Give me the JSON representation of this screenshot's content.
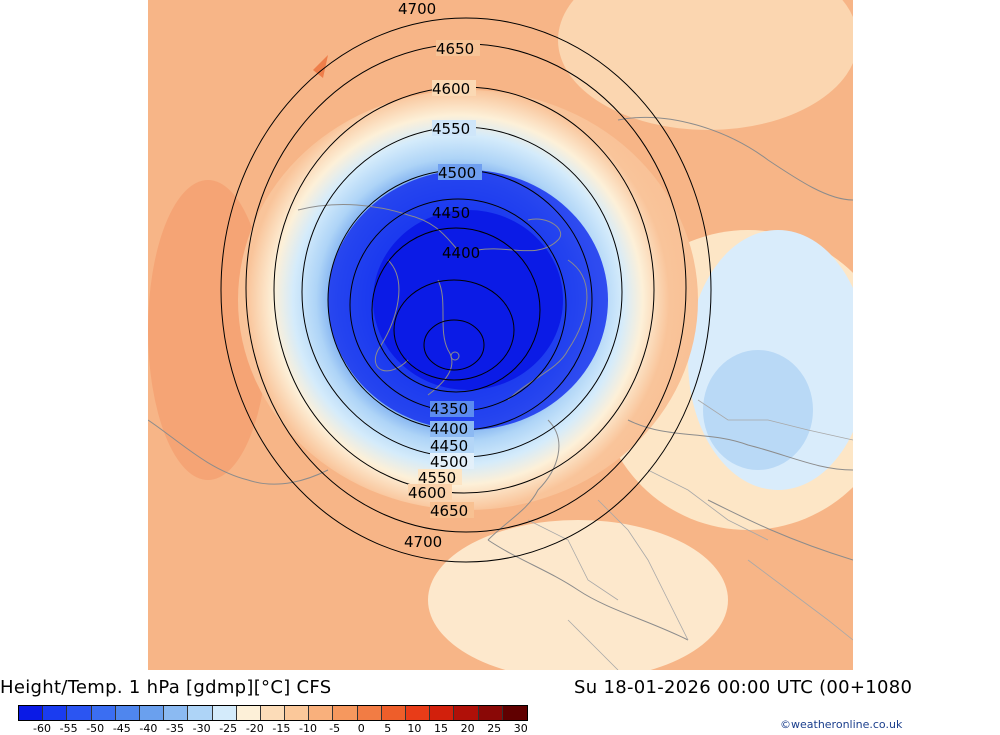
{
  "map": {
    "contour_labels": [
      "4700",
      "4650",
      "4600",
      "4550",
      "4500",
      "4450",
      "4400",
      "4350",
      "4400",
      "4450",
      "4500",
      "4550",
      "4600",
      "4650",
      "4700"
    ]
  },
  "footer": {
    "title": "Height/Temp. 1 hPa [gdmp][°C] CFS",
    "datetime": "Su 18-01-2026 00:00 UTC (00+1080"
  },
  "legend": {
    "ticks": [
      "-60",
      "-55",
      "-50",
      "-45",
      "-40",
      "-35",
      "-30",
      "-25",
      "-20",
      "-15",
      "-10",
      "-5",
      "0",
      "5",
      "10",
      "15",
      "20",
      "25",
      "30"
    ],
    "colors": [
      "#0a1ae6",
      "#1a3cf0",
      "#2b55f2",
      "#3b6ef2",
      "#4f86ee",
      "#6aa0ee",
      "#8bbaf2",
      "#aed4f7",
      "#d4ebfb",
      "#fdf0d8",
      "#fcdcb8",
      "#fbc89a",
      "#f9b07c",
      "#f6985e",
      "#f27c44",
      "#ee5e2a",
      "#e83c18",
      "#d2200c",
      "#b01008",
      "#8a0806",
      "#600000"
    ]
  },
  "credit": "©weatheronline.co.uk"
}
